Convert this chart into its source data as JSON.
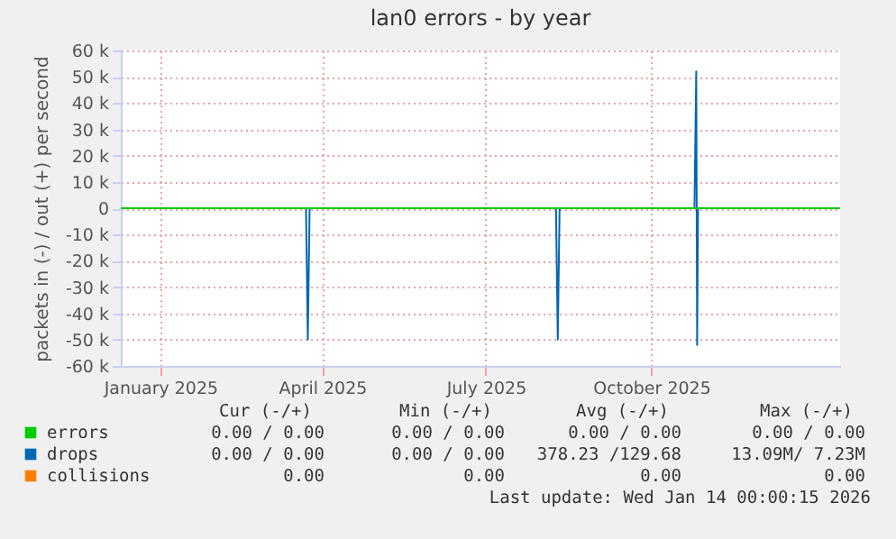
{
  "chart_data": {
    "type": "line",
    "title": "lan0 errors - by year",
    "ylabel": "packets in (-) / out (+) per second",
    "xlim": [
      "2024-12-10",
      "2026-01-14"
    ],
    "xticks": [
      {
        "value": "2025-01-01",
        "label": "January 2025"
      },
      {
        "value": "2025-04-01",
        "label": "April 2025"
      },
      {
        "value": "2025-07-01",
        "label": "July 2025"
      },
      {
        "value": "2025-10-01",
        "label": "October 2025"
      }
    ],
    "ylim": [
      -60000,
      60000
    ],
    "yticks": [
      {
        "value": -60000,
        "label": "-60 k"
      },
      {
        "value": -50000,
        "label": "-50 k"
      },
      {
        "value": -40000,
        "label": "-40 k"
      },
      {
        "value": -30000,
        "label": "-30 k"
      },
      {
        "value": -20000,
        "label": "-20 k"
      },
      {
        "value": -10000,
        "label": "-10 k"
      },
      0,
      {
        "value": 10000,
        "label": "10 k"
      },
      {
        "value": 20000,
        "label": "20 k"
      },
      {
        "value": 30000,
        "label": "30 k"
      },
      {
        "value": 40000,
        "label": "40 k"
      },
      {
        "value": 50000,
        "label": "50 k"
      },
      {
        "value": 60000,
        "label": "60 k"
      }
    ],
    "grid": true,
    "legend": "bottom",
    "series": [
      {
        "name": "errors",
        "color": "#00cc00",
        "x": [
          "2024-12-10",
          "2026-01-14"
        ],
        "values": [
          0,
          0
        ]
      },
      {
        "name": "drops",
        "color": "#0066b3",
        "x": [
          "2024-12-10",
          "2025-03-23",
          "2025-03-24",
          "2025-03-25",
          "2025-08-09",
          "2025-08-10",
          "2025-08-11",
          "2025-10-25",
          "2025-10-26",
          "2025-10-26T12:00",
          "2025-10-27",
          "2026-01-14"
        ],
        "values": [
          0,
          0,
          -50000,
          0,
          0,
          -50000,
          0,
          0,
          52000,
          -52000,
          0,
          0
        ]
      },
      {
        "name": "collisions",
        "color": "#ff8000"
      }
    ],
    "annotations": [
      "Cur (-/+)",
      "Min (-/+)",
      "Avg (-/+)",
      "Max (-/+)",
      "0.00 / 0.00",
      "0.00 / 0.00",
      "0.00 / 0.00",
      "0.00 / 0.00",
      "0.00 / 0.00",
      "0.00 / 0.00",
      "378.23 /129.68",
      "13.09M/ 7.23M",
      "0.00",
      "0.00",
      "0.00",
      "0.00",
      "Last update: Wed Jan 14 00:00:15 2026"
    ]
  }
}
